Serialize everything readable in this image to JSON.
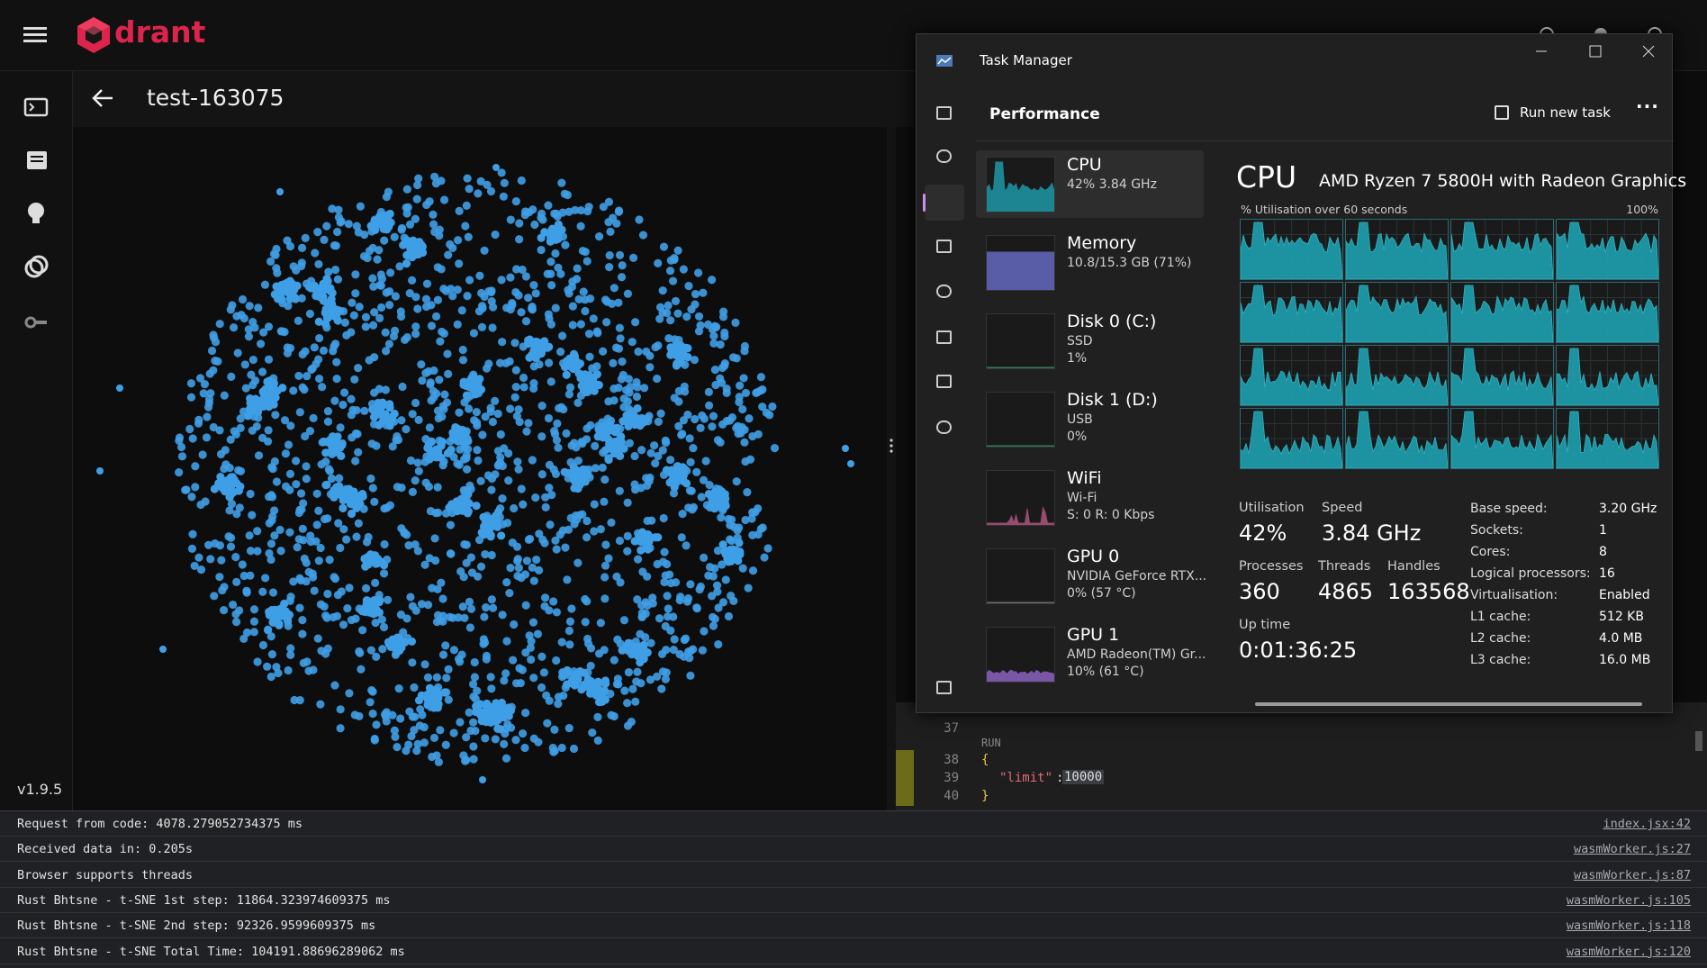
{
  "app": {
    "brand": "drant",
    "collection_title": "test-163075",
    "version": "v1.9.5"
  },
  "editor": {
    "run_label": "RUN",
    "line_numbers": [
      37,
      38,
      39,
      40
    ],
    "open_brace": "{",
    "key": "\"limit\"",
    "colon": ":",
    "value": "10000",
    "close_brace": "}"
  },
  "task_manager": {
    "title": "Task Manager",
    "section": "Performance",
    "action": "Run new task",
    "devices": [
      {
        "name": "CPU",
        "lines": [
          "42% 3.84 GHz"
        ]
      },
      {
        "name": "Memory",
        "lines": [
          "10.8/15.3 GB (71%)"
        ]
      },
      {
        "name": "Disk 0 (C:)",
        "lines": [
          "SSD",
          "1%"
        ]
      },
      {
        "name": "Disk 1 (D:)",
        "lines": [
          "USB",
          "0%"
        ]
      },
      {
        "name": "WiFi",
        "lines": [
          "Wi-Fi",
          "S: 0 R: 0 Kbps"
        ]
      },
      {
        "name": "GPU 0",
        "lines": [
          "NVIDIA GeForce RTX...",
          "0% (57 °C)"
        ]
      },
      {
        "name": "GPU 1",
        "lines": [
          "AMD Radeon(TM) Gr...",
          "10% (61 °C)"
        ]
      }
    ],
    "detail": {
      "heading": "CPU",
      "model": "AMD Ryzen 7 5800H with Radeon Graphics",
      "graph_label": "% Utilisation over 60 seconds",
      "graph_max": "100%",
      "stats": [
        {
          "label": "Utilisation",
          "value": "42%"
        },
        {
          "label": "Speed",
          "value": "3.84 GHz"
        },
        {
          "label": "Processes",
          "value": "360"
        },
        {
          "label": "Threads",
          "value": "4865"
        },
        {
          "label": "Handles",
          "value": "163568"
        },
        {
          "label": "Up time",
          "value": "0:01:36:25"
        }
      ],
      "properties": [
        {
          "label": "Base speed:",
          "value": "3.20 GHz"
        },
        {
          "label": "Sockets:",
          "value": "1"
        },
        {
          "label": "Cores:",
          "value": "8"
        },
        {
          "label": "Logical processors:",
          "value": "16"
        },
        {
          "label": "Virtualisation:",
          "value": "Enabled"
        },
        {
          "label": "L1 cache:",
          "value": "512 KB"
        },
        {
          "label": "L2 cache:",
          "value": "4.0 MB"
        },
        {
          "label": "L3 cache:",
          "value": "16.0 MB"
        }
      ]
    }
  },
  "console": {
    "rows": [
      {
        "message": "Request from code: 4078.279052734375 ms",
        "source": "index.jsx:42"
      },
      {
        "message": "Received data in: 0.205s",
        "source": "wasmWorker.js:27"
      },
      {
        "message": "Browser supports threads",
        "source": "wasmWorker.js:87"
      },
      {
        "message": "Rust Bhtsne - t-SNE 1st step: 11864.323974609375 ms",
        "source": "wasmWorker.js:105"
      },
      {
        "message": "Rust Bhtsne - t-SNE 2nd step: 92326.9599609375 ms",
        "source": "wasmWorker.js:118"
      },
      {
        "message": "Rust Bhtsne - t-SNE Total Time: 104191.88696289062 ms",
        "source": "wasmWorker.js:120"
      }
    ]
  }
}
